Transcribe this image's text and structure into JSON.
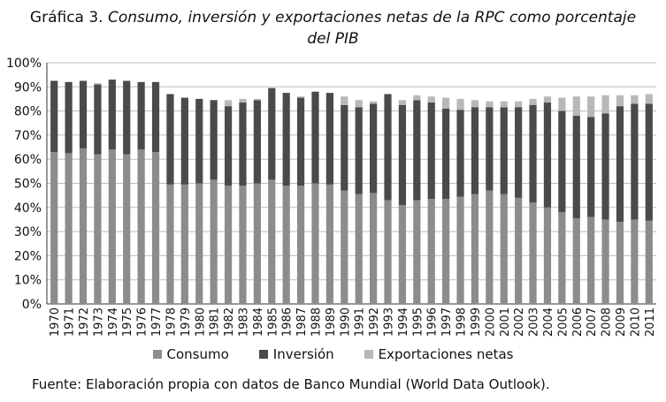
{
  "title": {
    "line1_prefix": "Gráfica 3.",
    "line1_italic": "Consumo, inversión y exportaciones netas de la RPC como porcentaje",
    "line2_italic": "del PIB"
  },
  "source": "Fuente: Elaboración propia con datos de Banco Mundial (World Data Outlook).",
  "colors": {
    "consumo": "#8c8c8c",
    "inversion": "#4a4a4a",
    "exportaciones": "#b8b8b8",
    "grid": "#bdbdbd",
    "axis": "#333333"
  },
  "chart_data": {
    "type": "bar",
    "stacked": true,
    "categories": [
      "1970",
      "1971",
      "1972",
      "1973",
      "1974",
      "1975",
      "1976",
      "1977",
      "1978",
      "1979",
      "1980",
      "1981",
      "1982",
      "1983",
      "1984",
      "1985",
      "1986",
      "1987",
      "1988",
      "1989",
      "1990",
      "1991",
      "1992",
      "1993",
      "1994",
      "1995",
      "1996",
      "1997",
      "1998",
      "1999",
      "2000",
      "2001",
      "2002",
      "2003",
      "2004",
      "2005",
      "2006",
      "2007",
      "2008",
      "2009",
      "2010",
      "2011"
    ],
    "series": [
      {
        "name": "Consumo",
        "values": [
          63,
          62.5,
          64.5,
          62,
          64,
          62,
          64,
          63,
          49.5,
          49.5,
          50,
          51.5,
          49,
          49,
          50,
          51.5,
          49,
          49,
          50,
          49.5,
          47,
          45.5,
          46,
          43,
          41,
          43,
          43.5,
          43.5,
          44.5,
          45.5,
          47,
          45.5,
          44,
          42,
          40,
          38,
          35.5,
          36,
          35,
          34,
          35,
          34.5
        ]
      },
      {
        "name": "Inversión",
        "values": [
          29.5,
          29.5,
          28,
          29,
          29,
          30.5,
          28,
          29,
          37.5,
          36,
          35,
          33,
          33,
          34.5,
          34.5,
          38,
          38.5,
          36.5,
          38,
          38,
          35.5,
          36,
          37,
          44,
          41.5,
          41.5,
          40,
          37.5,
          36,
          36,
          34.5,
          36,
          37.5,
          40.5,
          43.5,
          42,
          42.5,
          41.5,
          44,
          48,
          48,
          48.5
        ]
      },
      {
        "name": "Exportaciones netas",
        "values": [
          0,
          0,
          0,
          0.5,
          0,
          0,
          0,
          0,
          0,
          0,
          0,
          0,
          2.5,
          1.5,
          0.5,
          0,
          0,
          0.5,
          0,
          0,
          3.5,
          3,
          1,
          0,
          2,
          2,
          2.5,
          4.5,
          4.5,
          3,
          2.5,
          2.5,
          2.5,
          2.5,
          2.5,
          5.5,
          8,
          8.5,
          7.5,
          4.5,
          3.5,
          4
        ]
      }
    ],
    "y_ticks": [
      "0%",
      "10%",
      "20%",
      "30%",
      "40%",
      "50%",
      "60%",
      "70%",
      "80%",
      "90%",
      "100%"
    ],
    "ylim": [
      0,
      100
    ],
    "grid": true,
    "legend_position": "bottom"
  }
}
